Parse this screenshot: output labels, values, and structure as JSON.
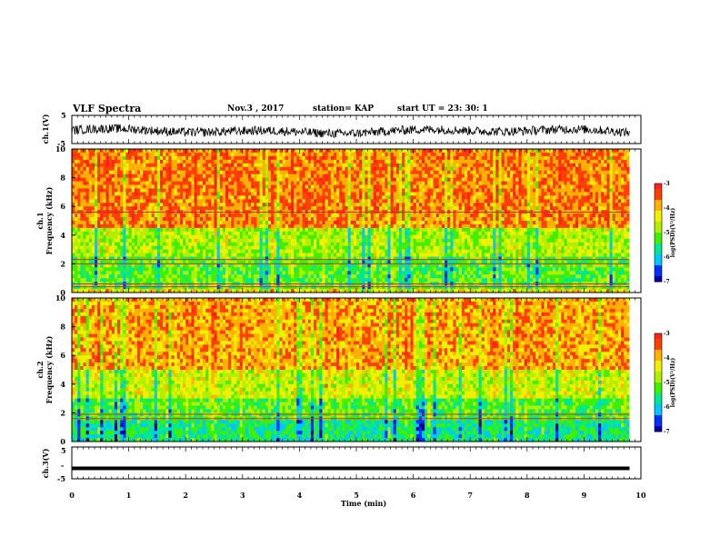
{
  "header": {
    "title": "VLF Spectra",
    "date": "Nov.3 , 2017",
    "station": "station= KAP",
    "start_ut": "start UT = 23: 30: 1"
  },
  "colors": {
    "colormap": [
      "#0000a0",
      "#0030ff",
      "#00c8ff",
      "#00e890",
      "#40f000",
      "#b0f000",
      "#f0f000",
      "#ffb000",
      "#ff4000",
      "#ff2020",
      "#ffc8d8"
    ],
    "waveform": "#000000",
    "ch3_line": "#000000"
  },
  "chart_data": [
    {
      "type": "line",
      "panel": "ch1-waveform",
      "ylabel": "ch.1(V)",
      "ylim": [
        -5,
        5
      ],
      "yticks": [
        "5",
        "-5"
      ],
      "xlim": [
        0,
        10
      ],
      "description_values": "noisy waveform oscillating roughly between -3 and 2 V over 0 to 9.8 min",
      "y_range_observed": [
        -3,
        2.5
      ]
    },
    {
      "type": "heatmap",
      "panel": "ch1-spectrogram",
      "ylabel": "ch.1\nFrequency (kHz)",
      "ylim": [
        0,
        10
      ],
      "yticks": [
        "0",
        "2",
        "4",
        "6",
        "8",
        "10"
      ],
      "xlim": [
        0,
        10
      ],
      "x_extent": [
        0,
        9.8
      ],
      "colorbar": {
        "label": "log(PSD)(V²/Hz)",
        "range": [
          -7,
          -3
        ],
        "ticks": [
          "-3",
          "-4",
          "-5",
          "-6",
          "-7"
        ]
      },
      "bands": [
        {
          "freq_khz": [
            0,
            0.3
          ],
          "log_psd": -4.2
        },
        {
          "freq_khz": [
            0.3,
            2.5
          ],
          "log_psd": -5.2
        },
        {
          "freq_khz": [
            2.5,
            4.5
          ],
          "log_psd": -4.8
        },
        {
          "freq_khz": [
            4.5,
            10
          ],
          "log_psd": -3.7
        }
      ],
      "line_features_khz": [
        0.4,
        0.6,
        2.0,
        2.3,
        5.6
      ]
    },
    {
      "type": "heatmap",
      "panel": "ch2-spectrogram",
      "ylabel": "ch.2\nFrequency (kHz)",
      "ylim": [
        0,
        10
      ],
      "yticks": [
        "0",
        "2",
        "4",
        "6",
        "8",
        "10"
      ],
      "xlim": [
        0,
        10
      ],
      "x_extent": [
        0,
        9.8
      ],
      "colorbar": {
        "label": "log(PSD)(V²/Hz)",
        "range": [
          -7,
          -3
        ],
        "ticks": [
          "-3",
          "-4",
          "-5",
          "-6",
          "-7"
        ]
      },
      "bands": [
        {
          "freq_khz": [
            0,
            1.5
          ],
          "log_psd": -5.6
        },
        {
          "freq_khz": [
            1.5,
            3.0
          ],
          "log_psd": -5.2
        },
        {
          "freq_khz": [
            3.0,
            5.0
          ],
          "log_psd": -4.6
        },
        {
          "freq_khz": [
            5.0,
            10
          ],
          "log_psd": -3.9
        }
      ],
      "line_features_khz": [
        1.6,
        1.9
      ]
    },
    {
      "type": "line",
      "panel": "ch3-waveform",
      "ylabel": "ch.3(V)",
      "ylim": [
        -5,
        5
      ],
      "yticks": [
        "5",
        "-5"
      ],
      "xlim": [
        0,
        10
      ],
      "x": [
        0,
        9.8
      ],
      "y": [
        -1.7,
        -1.7
      ]
    }
  ],
  "xaxis": {
    "label": "Time (min)",
    "ticks": [
      "0",
      "1",
      "2",
      "3",
      "4",
      "5",
      "6",
      "7",
      "8",
      "9",
      "10"
    ],
    "range": [
      0,
      10
    ]
  }
}
